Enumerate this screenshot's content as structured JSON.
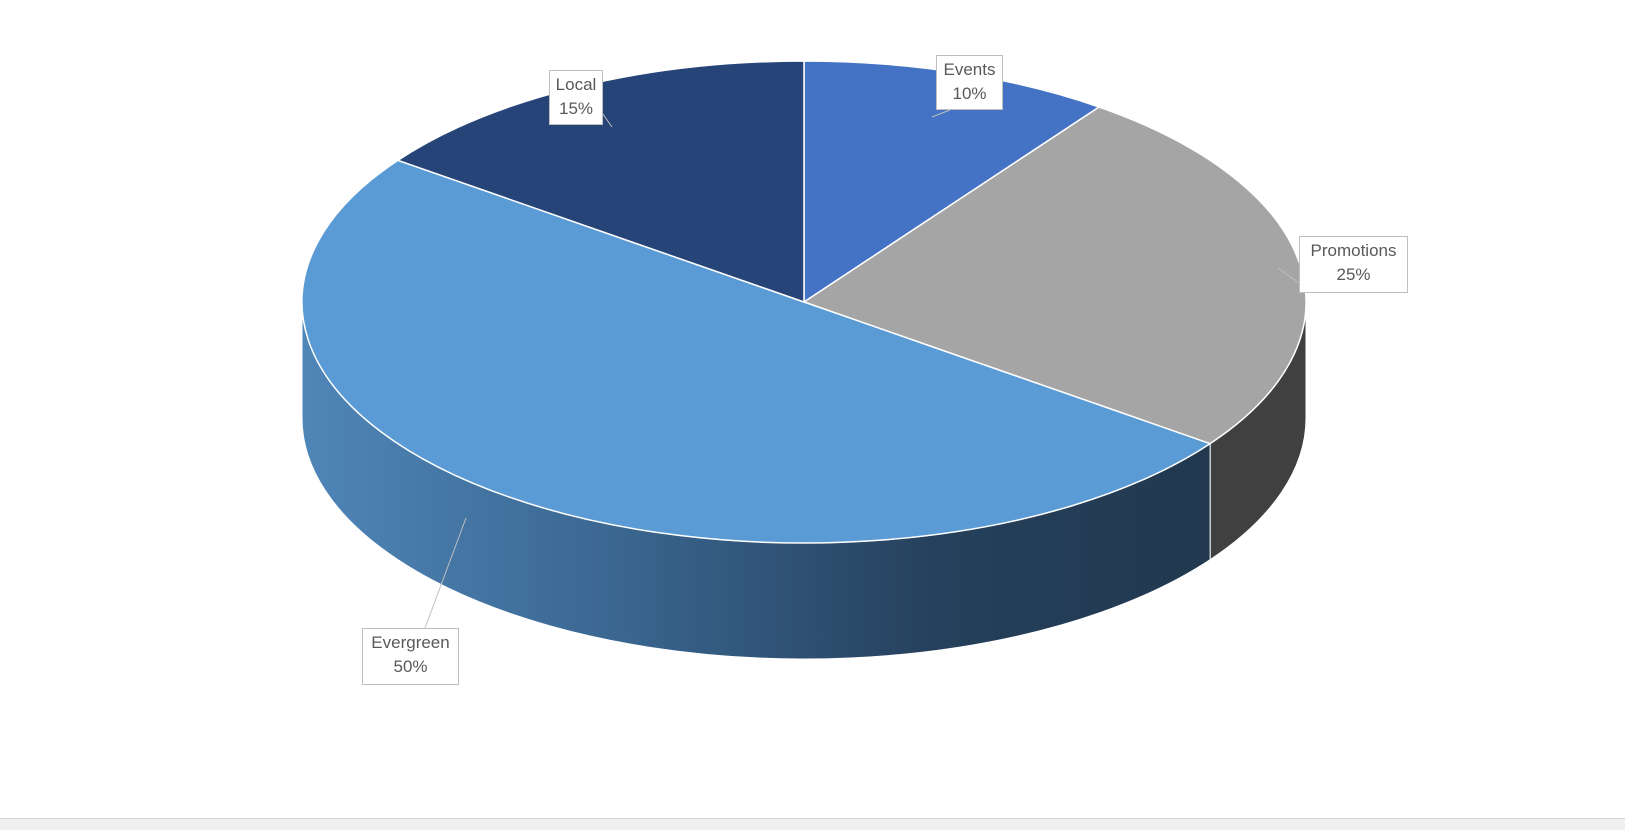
{
  "chart_data": {
    "type": "pie",
    "style": "3d",
    "slices": [
      {
        "label": "Events",
        "value": 10,
        "display": "10%",
        "color": "#4472c4",
        "side_color": "#2f5597"
      },
      {
        "label": "Promotions",
        "value": 25,
        "display": "25%",
        "color": "#a5a5a5",
        "side_color": "#404040"
      },
      {
        "label": "Evergreen",
        "value": 50,
        "display": "50%",
        "color": "#5b9bd5",
        "side_color": "#2e5273"
      },
      {
        "label": "Local",
        "value": 15,
        "display": "15%",
        "color": "#264478",
        "side_color": "#1a2f54"
      }
    ],
    "start_direction": "top",
    "direction": "clockwise",
    "legend": "none",
    "data_labels": "callout"
  }
}
